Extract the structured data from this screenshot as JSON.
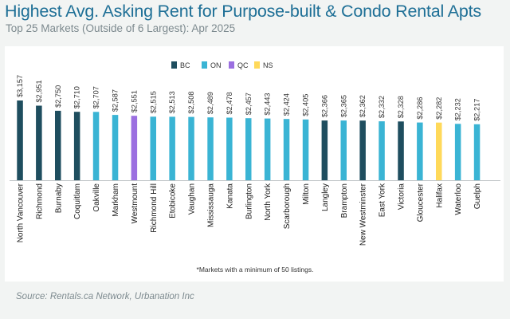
{
  "chart_data": {
    "type": "bar",
    "title": "Highest Avg. Asking Rent for Purpose-built & Condo Rental Apts",
    "subtitle": "Top 25 Markets (Outside of 6 Largest): Apr 2025",
    "legend": {
      "placement": "top-center",
      "entries": [
        {
          "key": "BC",
          "label": "BC",
          "color": "#1f4e5f"
        },
        {
          "key": "ON",
          "label": "ON",
          "color": "#3ab4d4"
        },
        {
          "key": "QC",
          "label": "QC",
          "color": "#9b6fe0"
        },
        {
          "key": "NS",
          "label": "NS",
          "color": "#ffd95a"
        }
      ]
    },
    "categories": [
      "North Vancouver",
      "Richmond",
      "Burnaby",
      "Coquitlam",
      "Oakville",
      "Markham",
      "Westmount",
      "Richmond Hill",
      "Etobicoke",
      "Vaughan",
      "Mississauga",
      "Kanata",
      "Burlington",
      "North York",
      "Scarborough",
      "Milton",
      "Langley",
      "Brampton",
      "New Westminster",
      "East York",
      "Victoria",
      "Gloucester",
      "Halifax",
      "Waterloo",
      "Guelph"
    ],
    "values": [
      3157,
      2951,
      2750,
      2710,
      2707,
      2587,
      2551,
      2515,
      2513,
      2508,
      2489,
      2478,
      2457,
      2443,
      2424,
      2405,
      2366,
      2365,
      2362,
      2332,
      2328,
      2286,
      2282,
      2232,
      2217
    ],
    "data_labels": [
      "$3,157",
      "$2,951",
      "$2,750",
      "$2,710",
      "$2,707",
      "$2,587",
      "$2,551",
      "$2,515",
      "$2,513",
      "$2,508",
      "$2,489",
      "$2,478",
      "$2,457",
      "$2,443",
      "$2,424",
      "$2,405",
      "$2,366",
      "$2,365",
      "$2,362",
      "$2,332",
      "$2,328",
      "$2,286",
      "$2,282",
      "$2,232",
      "$2,217"
    ],
    "province": [
      "BC",
      "BC",
      "BC",
      "BC",
      "ON",
      "ON",
      "QC",
      "ON",
      "ON",
      "ON",
      "ON",
      "ON",
      "ON",
      "ON",
      "ON",
      "ON",
      "BC",
      "ON",
      "BC",
      "ON",
      "BC",
      "ON",
      "NS",
      "ON",
      "ON"
    ],
    "ylim": [
      0,
      3157
    ],
    "grid": false,
    "xlabel": "",
    "ylabel": ""
  },
  "footnote": "*Markets with a minimum of 50 listings.",
  "source": "Source: Rentals.ca Network, Urbanation Inc"
}
